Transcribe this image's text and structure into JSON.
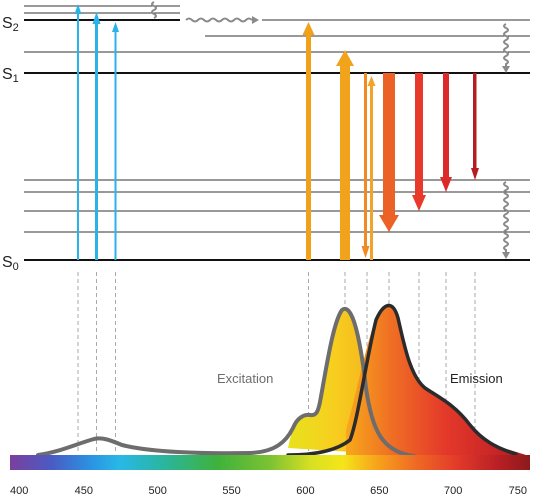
{
  "energy_levels": {
    "s2": {
      "letter": "S",
      "index": "2"
    },
    "s1": {
      "letter": "S",
      "index": "1"
    },
    "s0": {
      "letter": "S",
      "index": "0"
    }
  },
  "curves": {
    "excitation_label": "Excitation",
    "emission_label": "Emission"
  },
  "axis": {
    "unit": "",
    "ticks": [
      "400",
      "450",
      "500",
      "550",
      "600",
      "650",
      "700",
      "750"
    ]
  },
  "colors": {
    "blue_arrow": "#2ab3e6",
    "orange_arrow": "#f0a019",
    "excitation_curve": "#6d6d6d",
    "emission_curve": "#2b2b2b",
    "guide_line": "#aaaaaa"
  }
}
